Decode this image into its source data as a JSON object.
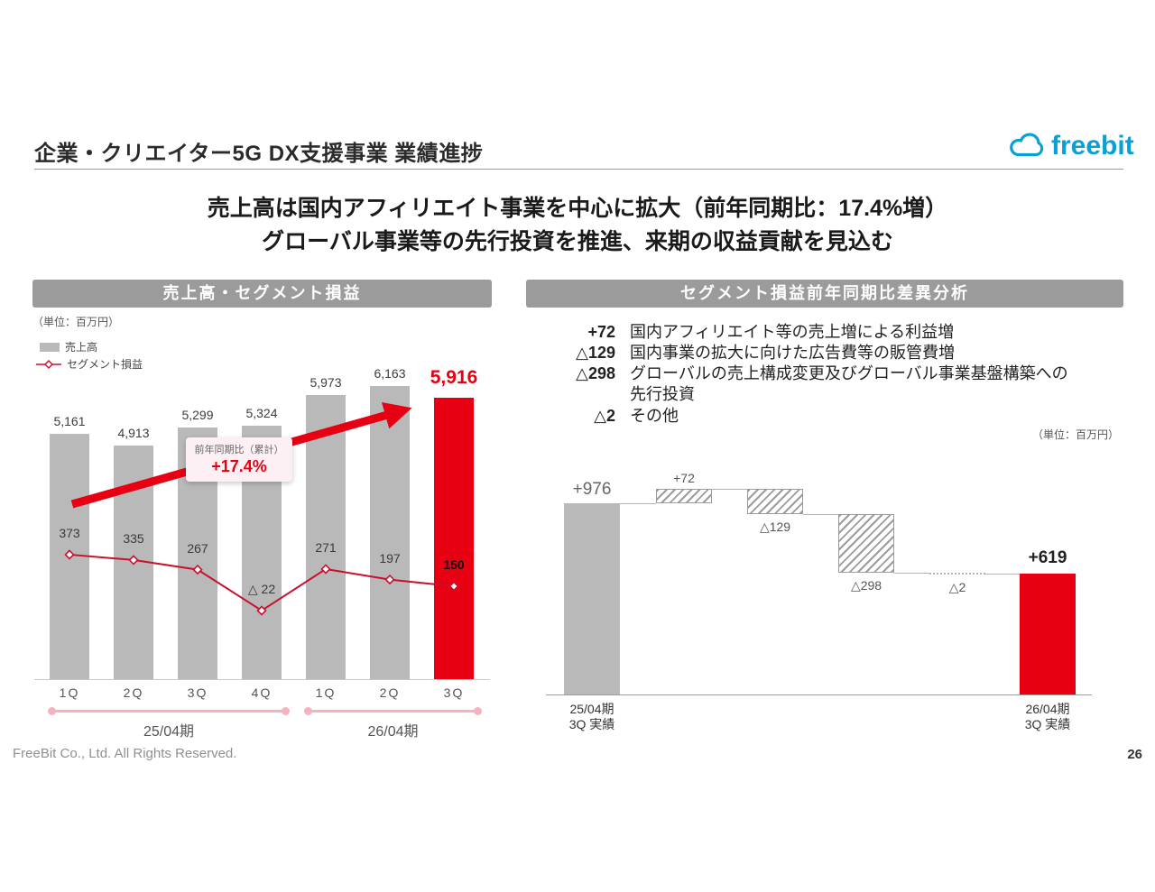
{
  "page": {
    "title": "企業・クリエイター5G DX支援事業 業績進捗",
    "headline1": "売上高は国内アフィリエイト事業を中心に拡大（前年同期比：17.4%増）",
    "headline2": "グローバル事業等の先行投資を推進、来期の収益貢献を見込む",
    "footer": "FreeBit Co., Ltd. All Rights Reserved.",
    "page_number": "26"
  },
  "logo": {
    "text": "freebit",
    "color": "#0b9fd8"
  },
  "colors": {
    "accent_red": "#e60012",
    "line_red": "#c8102e",
    "bar_gray": "#b9b9b9",
    "header_gray": "#9b9b9b",
    "period_pink": "#f3b3bf"
  },
  "left_panel": {
    "header": "売上高・セグメント損益",
    "unit": "（単位：百万円）",
    "legend": [
      {
        "type": "bar",
        "label": "売上高"
      },
      {
        "type": "line",
        "label": "セグメント損益"
      }
    ],
    "annotation": {
      "label": "前年同期比（累計）",
      "value": "+17.4%"
    }
  },
  "right_panel": {
    "header": "セグメント損益前年同期比差異分析",
    "unit": "（単位：百万円）",
    "bullets": [
      {
        "value": "+72",
        "desc": "国内アフィリエイト等の売上増による利益増"
      },
      {
        "value": "△129",
        "desc": "国内事業の拡大に向けた広告費等の販管費増"
      },
      {
        "value": "△298",
        "desc": "グローバルの売上構成変更及びグローバル事業基盤構築への先行投資"
      },
      {
        "value": "△2",
        "desc": "その他"
      }
    ]
  },
  "chart_data": [
    {
      "id": "revenue_and_segment_profit",
      "type": "bar",
      "title": "売上高・セグメント損益",
      "unit": "百万円",
      "categories": [
        "1Q",
        "2Q",
        "3Q",
        "4Q",
        "1Q",
        "2Q",
        "3Q"
      ],
      "period_groups": [
        {
          "label": "25/04期",
          "from": 0,
          "to": 3
        },
        {
          "label": "26/04期",
          "from": 4,
          "to": 6
        }
      ],
      "series": [
        {
          "name": "売上高",
          "type": "bar",
          "values": [
            5161,
            4913,
            5299,
            5324,
            5973,
            6163,
            5916
          ],
          "labels": [
            "5,161",
            "4,913",
            "5,299",
            "5,324",
            "5,973",
            "6,163",
            "5,916"
          ],
          "highlight_index": 6
        },
        {
          "name": "セグメント損益",
          "type": "line",
          "values": [
            373,
            335,
            267,
            -22,
            271,
            197,
            150
          ],
          "labels": [
            "373",
            "335",
            "267",
            "△ 22",
            "271",
            "197",
            "150"
          ],
          "highlight_index": 6
        }
      ],
      "annotation": "前年同期比（累計） +17.4%",
      "bar_ylim": [
        0,
        6500
      ],
      "legend_position": "top-left",
      "grid": false
    },
    {
      "id": "segment_profit_yoy_waterfall",
      "type": "waterfall",
      "title": "セグメント損益前年同期比差異分析",
      "unit": "百万円",
      "bars": [
        {
          "label": "+976",
          "value": 976,
          "kind": "total-start",
          "hatched": false,
          "axis_label": "25/04期\n3Q 実績"
        },
        {
          "label": "+72",
          "value": 72,
          "kind": "delta",
          "hatched": true,
          "label_pos": "above"
        },
        {
          "label": "△129",
          "value": -129,
          "kind": "delta",
          "hatched": true,
          "label_pos": "below"
        },
        {
          "label": "△298",
          "value": -298,
          "kind": "delta",
          "hatched": true,
          "label_pos": "below"
        },
        {
          "label": "△2",
          "value": -2,
          "kind": "delta",
          "hatched": false,
          "label_pos": "below"
        },
        {
          "label": "+619",
          "value": 619,
          "kind": "total-end",
          "hatched": false,
          "axis_label": "26/04期\n3Q 実績"
        }
      ],
      "grid": false
    }
  ]
}
